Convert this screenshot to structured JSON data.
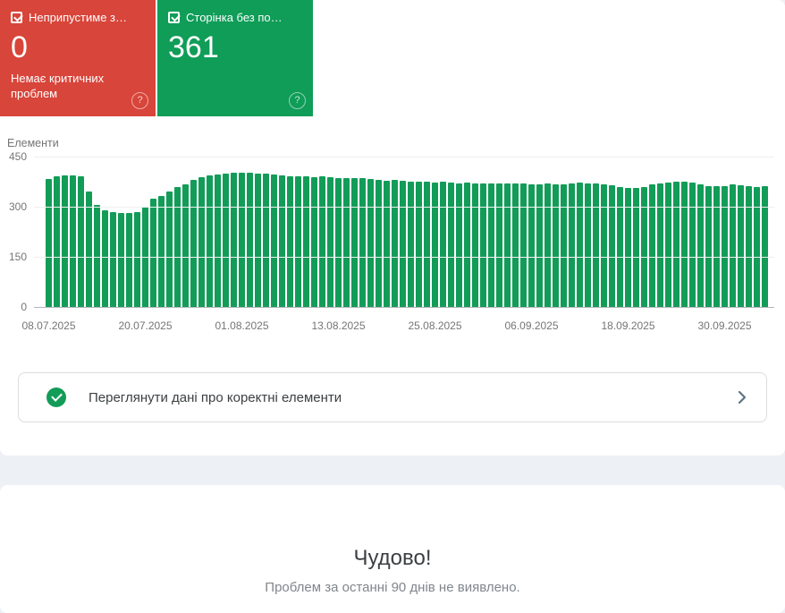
{
  "summary": {
    "help_glyph": "?",
    "cards": [
      {
        "id": "errors",
        "label": "Неприпустиме з…",
        "value": "0",
        "subtext": "Немає критичних проблем",
        "color": "#d8453a"
      },
      {
        "id": "valid",
        "label": "Сторінка без по…",
        "value": "361",
        "subtext": "",
        "color": "#0f9d58"
      }
    ]
  },
  "chart_data": {
    "type": "bar",
    "title": "Елементи",
    "xlabel": "",
    "ylabel": "",
    "ylim": [
      0,
      450
    ],
    "yticks": [
      450,
      300,
      150,
      0
    ],
    "grid": true,
    "legend": "none",
    "bar_color": "#129c58",
    "xtick_labels": [
      "08.07.2025",
      "20.07.2025",
      "01.08.2025",
      "13.08.2025",
      "25.08.2025",
      "06.09.2025",
      "18.09.2025",
      "30.09.2025"
    ],
    "xtick_bar_indices": [
      0,
      12,
      24,
      36,
      48,
      60,
      72,
      84
    ],
    "values": [
      384,
      391,
      395,
      395,
      391,
      346,
      305,
      289,
      284,
      282,
      282,
      284,
      300,
      323,
      331,
      346,
      359,
      366,
      381,
      388,
      393,
      397,
      399,
      401,
      402,
      402,
      400,
      398,
      396,
      394,
      392,
      391,
      390,
      388,
      390,
      389,
      387,
      386,
      387,
      385,
      383,
      381,
      379,
      381,
      378,
      376,
      375,
      374,
      373,
      374,
      372,
      371,
      372,
      370,
      371,
      370,
      369,
      371,
      370,
      369,
      368,
      367,
      369,
      366,
      368,
      370,
      372,
      371,
      369,
      367,
      364,
      360,
      357,
      356,
      360,
      366,
      370,
      373,
      375,
      374,
      372,
      366,
      362,
      361,
      363,
      368,
      365,
      361,
      359,
      362
    ]
  },
  "review_card": {
    "label": "Переглянути дані про коректні елементи"
  },
  "empty_state": {
    "title": "Чудово!",
    "subtitle": "Проблем за останні 90 днів не виявлено."
  }
}
